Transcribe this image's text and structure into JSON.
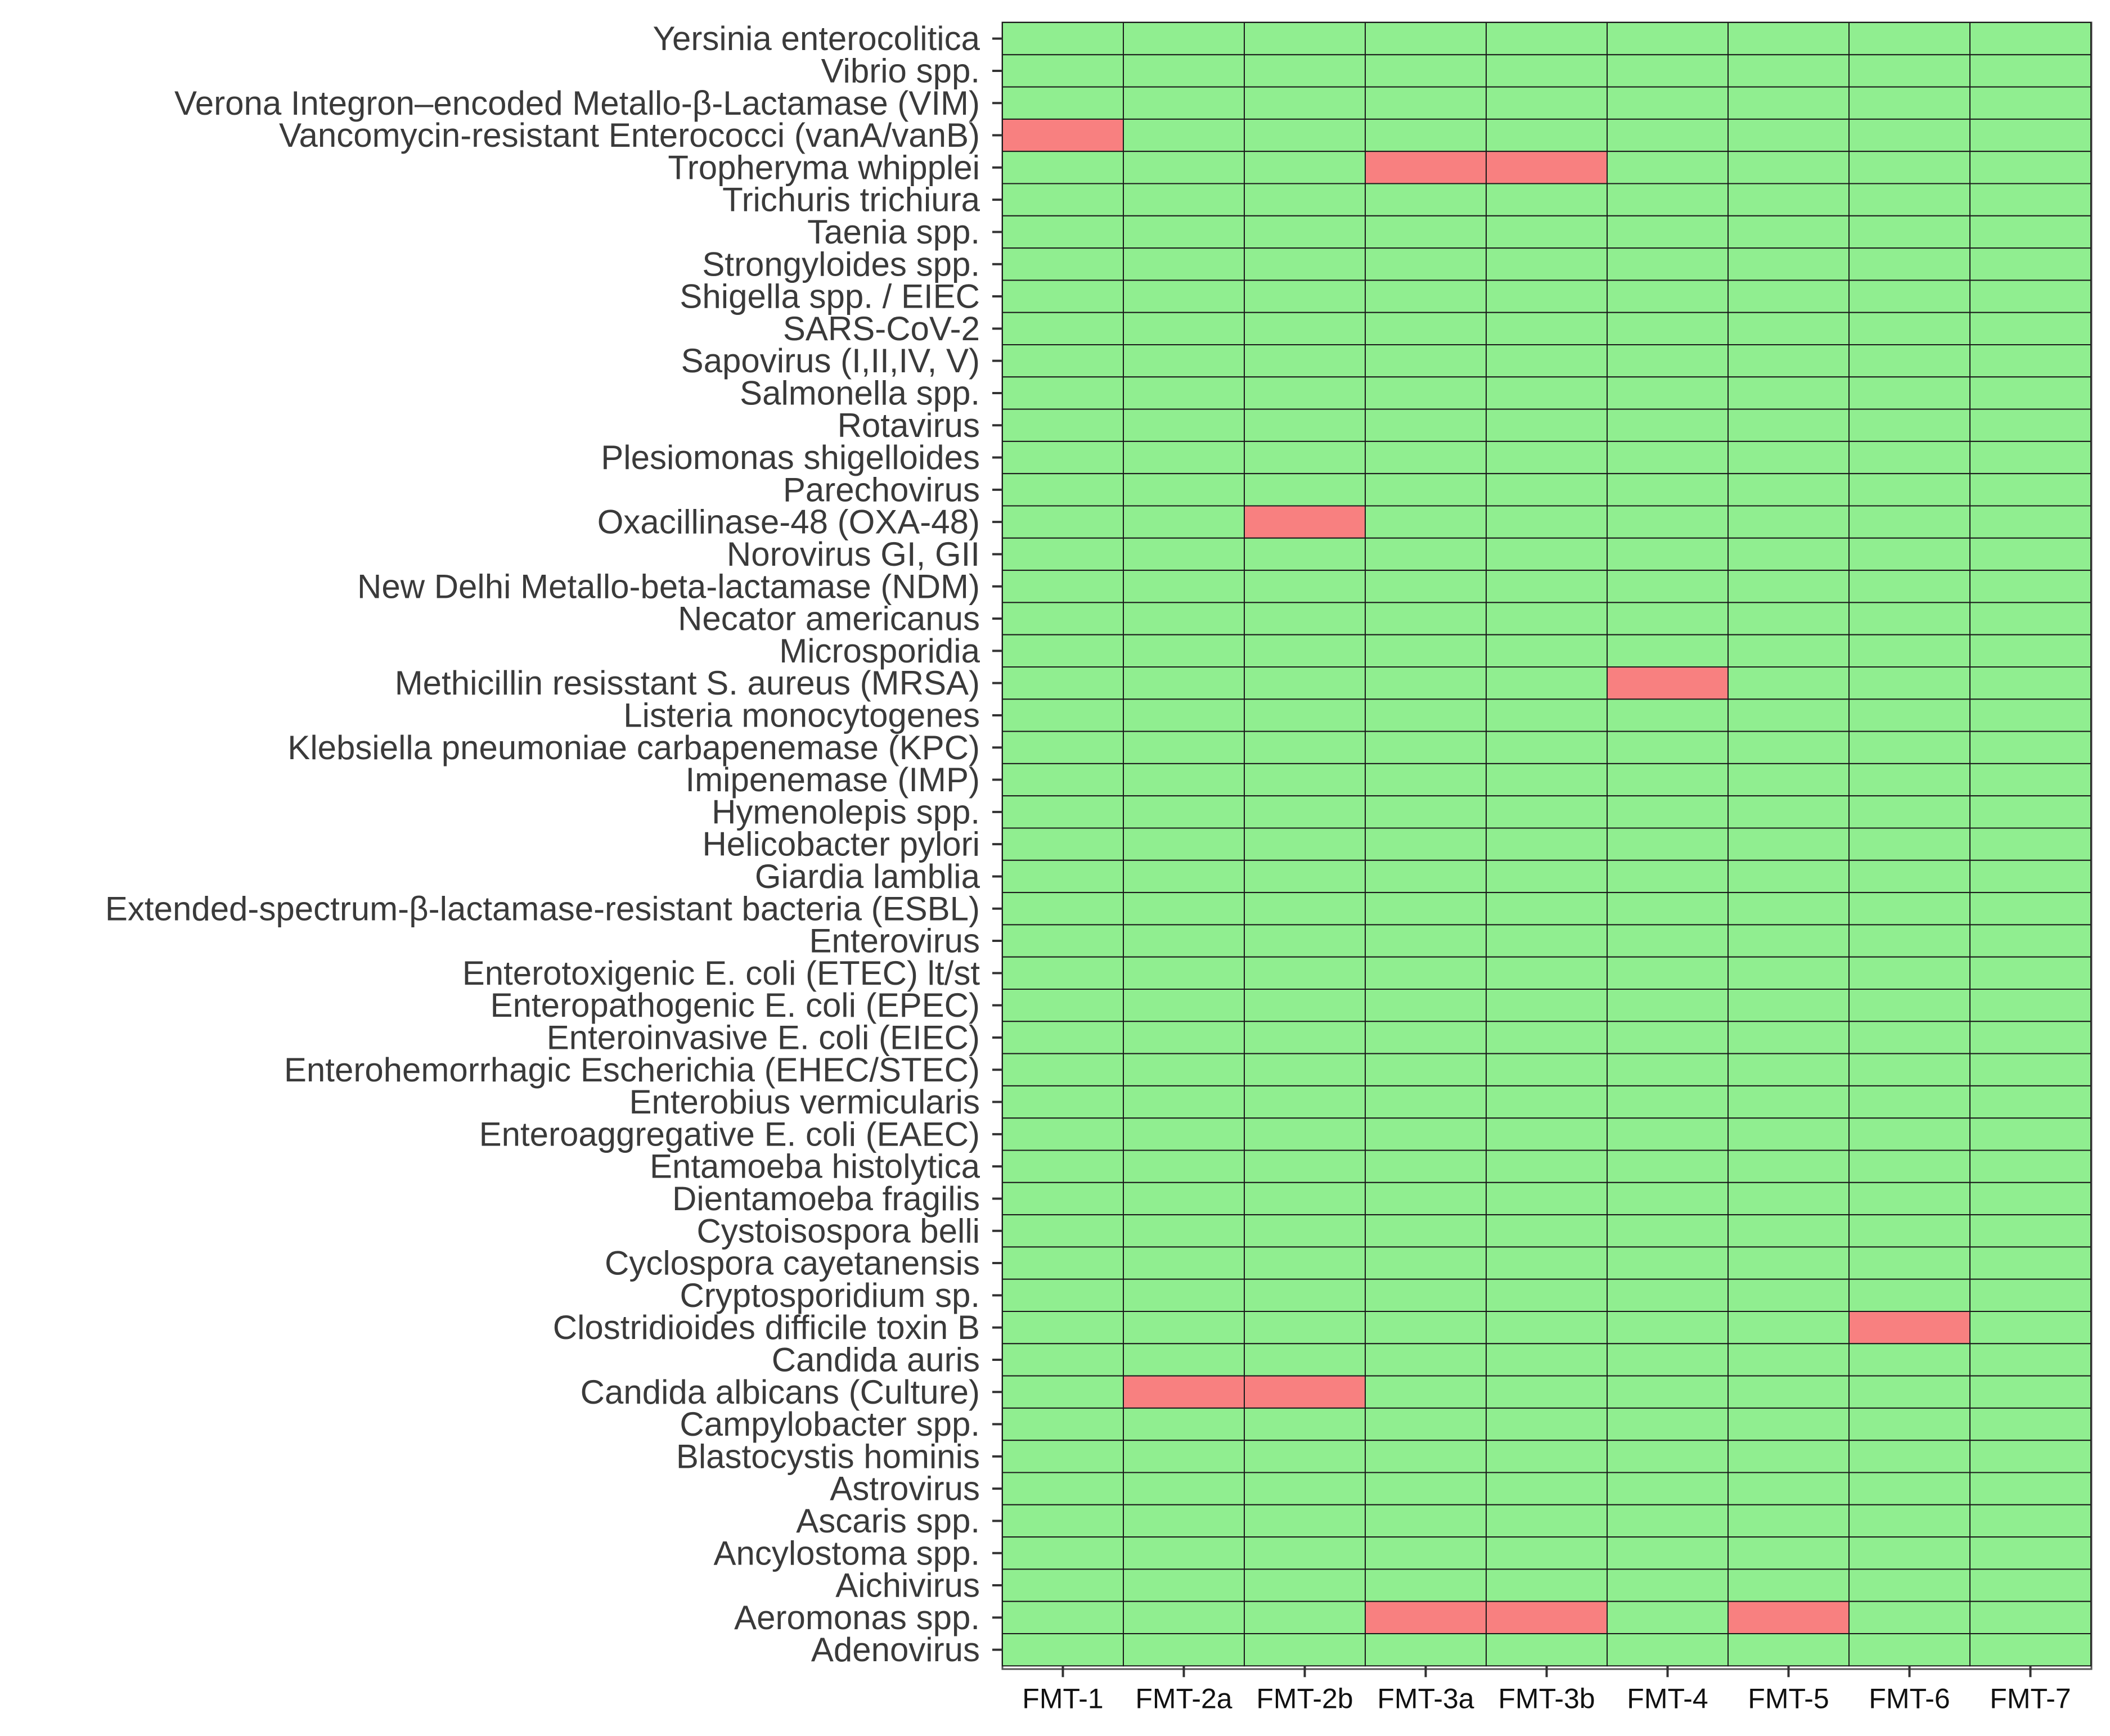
{
  "chart_data": {
    "type": "heatmap",
    "title": "",
    "xlabel": "",
    "ylabel": "",
    "columns": [
      "FMT-1",
      "FMT-2a",
      "FMT-2b",
      "FMT-3a",
      "FMT-3b",
      "FMT-4",
      "FMT-5",
      "FMT-6",
      "FMT-7"
    ],
    "rows": [
      "Yersinia enterocolitica",
      "Vibrio spp.",
      "Verona Integron–encoded Metallo-β-Lactamase (VIM)",
      "Vancomycin-resistant Enterococci (vanA/vanB)",
      "Tropheryma whipplei",
      "Trichuris trichiura",
      "Taenia spp.",
      "Strongyloides spp.",
      "Shigella spp. / EIEC",
      "SARS-CoV-2",
      "Sapovirus (I,II,IV, V)",
      "Salmonella spp.",
      "Rotavirus",
      "Plesiomonas shigelloides",
      "Parechovirus",
      "Oxacillinase-48 (OXA-48)",
      "Norovirus GI, GII",
      "New Delhi Metallo-beta-lactamase (NDM)",
      "Necator americanus",
      "Microsporidia",
      "Methicillin resisstant S. aureus (MRSA)",
      "Listeria monocytogenes",
      "Klebsiella pneumoniae carbapenemase (KPC)",
      "Imipenemase (IMP)",
      "Hymenolepis spp.",
      "Helicobacter pylori",
      "Giardia lamblia",
      "Extended-spectrum-β-lactamase-resistant bacteria (ESBL)",
      "Enterovirus",
      "Enterotoxigenic E. coli (ETEC) lt/st",
      "Enteropathogenic E. coli (EPEC)",
      "Enteroinvasive E. coli (EIEC)",
      "Enterohemorrhagic Escherichia (EHEC/STEC)",
      "Enterobius vermicularis",
      "Enteroaggregative E. coli (EAEC)",
      "Entamoeba histolytica",
      "Dientamoeba fragilis",
      "Cystoisospora belli",
      "Cyclospora cayetanensis",
      "Cryptosporidium sp.",
      "Clostridioides difficile toxin B",
      "Candida auris",
      "Candida albicans (Culture)",
      "Campylobacter spp.",
      "Blastocystis hominis",
      "Astrovirus",
      "Ascaris spp.",
      "Ancylostoma spp.",
      "Aichivirus",
      "Aeromonas spp.",
      "Adenovirus"
    ],
    "positives": [
      {
        "row": "Vancomycin-resistant Enterococci (vanA/vanB)",
        "col": "FMT-1"
      },
      {
        "row": "Tropheryma whipplei",
        "col": "FMT-3a"
      },
      {
        "row": "Tropheryma whipplei",
        "col": "FMT-3b"
      },
      {
        "row": "Oxacillinase-48 (OXA-48)",
        "col": "FMT-2b"
      },
      {
        "row": "Methicillin resisstant S. aureus (MRSA)",
        "col": "FMT-4"
      },
      {
        "row": "Clostridioides difficile toxin B",
        "col": "FMT-6"
      },
      {
        "row": "Candida albicans (Culture)",
        "col": "FMT-2a"
      },
      {
        "row": "Candida albicans (Culture)",
        "col": "FMT-2b"
      },
      {
        "row": "Aeromonas spp.",
        "col": "FMT-3a"
      },
      {
        "row": "Aeromonas spp.",
        "col": "FMT-3b"
      },
      {
        "row": "Aeromonas spp.",
        "col": "FMT-5"
      }
    ],
    "legend": "none",
    "grid": true,
    "colors": {
      "negative": "#90EE90",
      "positive": "#F88080",
      "cell_border": "#1a1a1a",
      "axis": "#333333"
    }
  }
}
